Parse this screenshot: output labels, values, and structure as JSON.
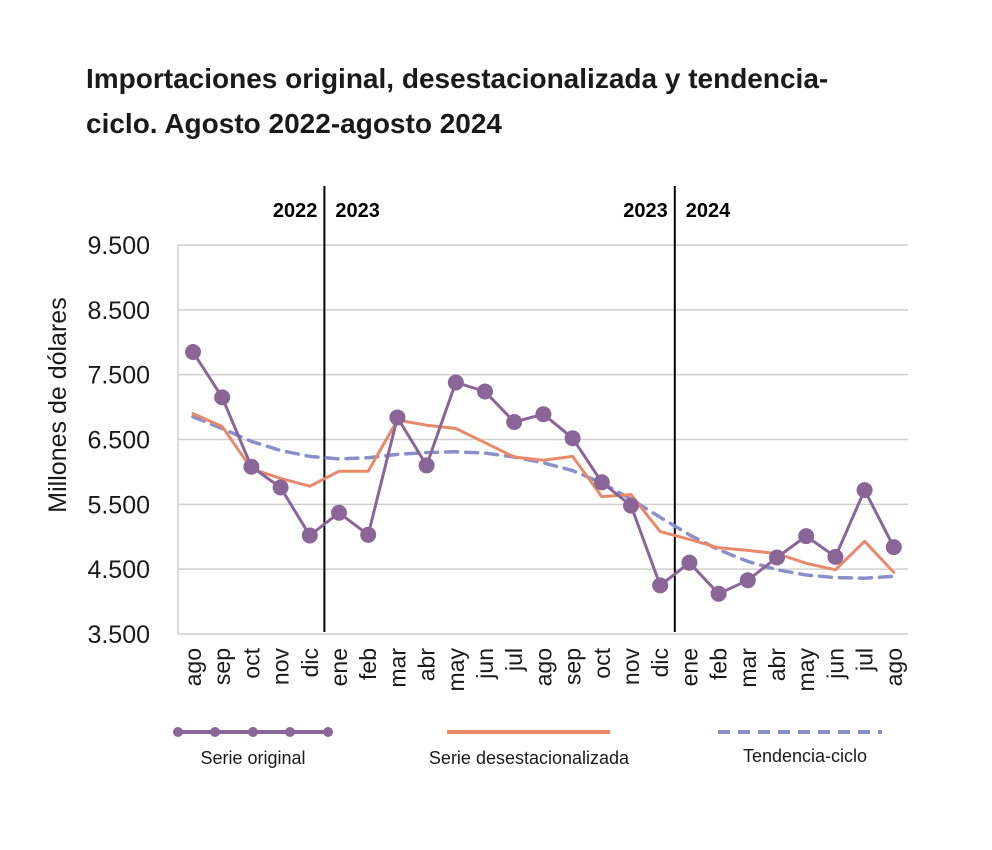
{
  "title": "Importaciones original, desestacionalizada y tendencia-ciclo. Agosto 2022-agosto 2024",
  "chart_data": {
    "type": "line",
    "title": "Importaciones original, desestacionalizada y tendencia-ciclo. Agosto 2022-agosto 2024",
    "xlabel": "",
    "ylabel": "Millones de dólares",
    "ylim": [
      3500,
      9500
    ],
    "yticks": [
      3500,
      4500,
      5500,
      6500,
      7500,
      8500,
      9500
    ],
    "ytick_labels": [
      "3.500",
      "4.500",
      "5.500",
      "6.500",
      "7.500",
      "8.500",
      "9.500"
    ],
    "grid": "horizontal",
    "legend_position": "bottom",
    "categories": [
      "ago",
      "sep",
      "oct",
      "nov",
      "dic",
      "ene",
      "feb",
      "mar",
      "abr",
      "may",
      "jun",
      "jul",
      "ago",
      "sep",
      "oct",
      "nov",
      "dic",
      "ene",
      "feb",
      "mar",
      "abr",
      "may",
      "jun",
      "jul",
      "ago"
    ],
    "year_dividers": [
      {
        "after_index": 4,
        "left_label": "2022",
        "right_label": "2023"
      },
      {
        "after_index": 16,
        "left_label": "2023",
        "right_label": "2024"
      }
    ],
    "series": [
      {
        "name": "Serie original",
        "color": "#8a6597",
        "style": "solid-markers",
        "values": [
          7850,
          7150,
          6080,
          5760,
          5020,
          5370,
          5030,
          6840,
          6100,
          7380,
          7240,
          6770,
          6890,
          6520,
          5840,
          5480,
          4250,
          4600,
          4120,
          4330,
          4680,
          5010,
          4690,
          5720,
          4840
        ]
      },
      {
        "name": "Serie desestacionalizada",
        "color": "#e8896a",
        "style": "solid",
        "values": [
          6900,
          6700,
          6050,
          5900,
          5780,
          6010,
          6010,
          6800,
          6720,
          6670,
          6450,
          6230,
          6180,
          6240,
          5620,
          5650,
          5080,
          4960,
          4830,
          4790,
          4740,
          4590,
          4490,
          4930,
          4450
        ]
      },
      {
        "name": "Tendencia-ciclo",
        "color": "#8a8fcc",
        "style": "dashed",
        "values": [
          6850,
          6670,
          6470,
          6330,
          6240,
          6200,
          6220,
          6270,
          6300,
          6310,
          6290,
          6230,
          6140,
          6020,
          5830,
          5580,
          5300,
          5030,
          4800,
          4620,
          4490,
          4410,
          4370,
          4360,
          4390
        ]
      }
    ]
  }
}
